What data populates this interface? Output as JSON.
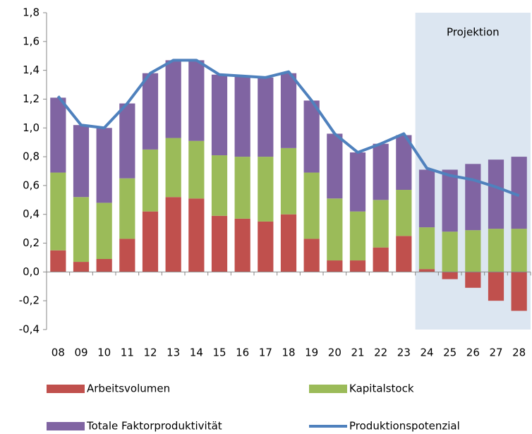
{
  "chart_data": {
    "type": "stacked-bar-line",
    "categories": [
      "08",
      "09",
      "10",
      "11",
      "12",
      "13",
      "14",
      "15",
      "16",
      "17",
      "18",
      "19",
      "20",
      "21",
      "22",
      "23",
      "24",
      "25",
      "26",
      "27",
      "28"
    ],
    "series": [
      {
        "name": "Arbeitsvolumen",
        "type": "bar",
        "color": "#c0504d",
        "values": [
          0.15,
          0.07,
          0.09,
          0.23,
          0.42,
          0.52,
          0.51,
          0.39,
          0.37,
          0.35,
          0.4,
          0.23,
          0.08,
          0.08,
          0.17,
          0.25,
          0.02,
          -0.05,
          -0.11,
          -0.2,
          -0.27
        ]
      },
      {
        "name": "Kapitalstock",
        "type": "bar",
        "color": "#9bbb59",
        "values": [
          0.54,
          0.45,
          0.39,
          0.42,
          0.43,
          0.41,
          0.4,
          0.42,
          0.43,
          0.45,
          0.46,
          0.46,
          0.43,
          0.34,
          0.33,
          0.32,
          0.29,
          0.28,
          0.29,
          0.3,
          0.3
        ]
      },
      {
        "name": "Totale Faktorproduktivität",
        "type": "bar",
        "color": "#8064a2",
        "values": [
          0.52,
          0.5,
          0.52,
          0.52,
          0.53,
          0.54,
          0.56,
          0.56,
          0.56,
          0.55,
          0.52,
          0.5,
          0.45,
          0.41,
          0.39,
          0.38,
          0.4,
          0.43,
          0.46,
          0.48,
          0.5
        ]
      },
      {
        "name": "Produktionspotenzial",
        "type": "line",
        "color": "#4f81bd",
        "values": [
          1.22,
          1.02,
          1.0,
          1.17,
          1.38,
          1.47,
          1.47,
          1.37,
          1.36,
          1.35,
          1.39,
          1.19,
          0.96,
          0.83,
          0.89,
          0.96,
          0.72,
          0.67,
          0.64,
          0.59,
          0.53
        ]
      }
    ],
    "ylim": [
      -0.4,
      1.8
    ],
    "yticks": [
      {
        "value": -0.4,
        "label": "-0,4"
      },
      {
        "value": -0.2,
        "label": "-0,2"
      },
      {
        "value": 0,
        "label": "0,0"
      },
      {
        "value": 0.2,
        "label": "0,2"
      },
      {
        "value": 0.4,
        "label": "0,4"
      },
      {
        "value": 0.6,
        "label": "0,6"
      },
      {
        "value": 0.8,
        "label": "0,8"
      },
      {
        "value": 1.0,
        "label": "1,0"
      },
      {
        "value": 1.2,
        "label": "1,2"
      },
      {
        "value": 1.4,
        "label": "1,4"
      },
      {
        "value": 1.6,
        "label": "1,6"
      },
      {
        "value": 1.8,
        "label": "1,8"
      }
    ],
    "grid": false,
    "projection": {
      "label": "Projektion",
      "from": "24",
      "color": "#dce6f1"
    }
  }
}
